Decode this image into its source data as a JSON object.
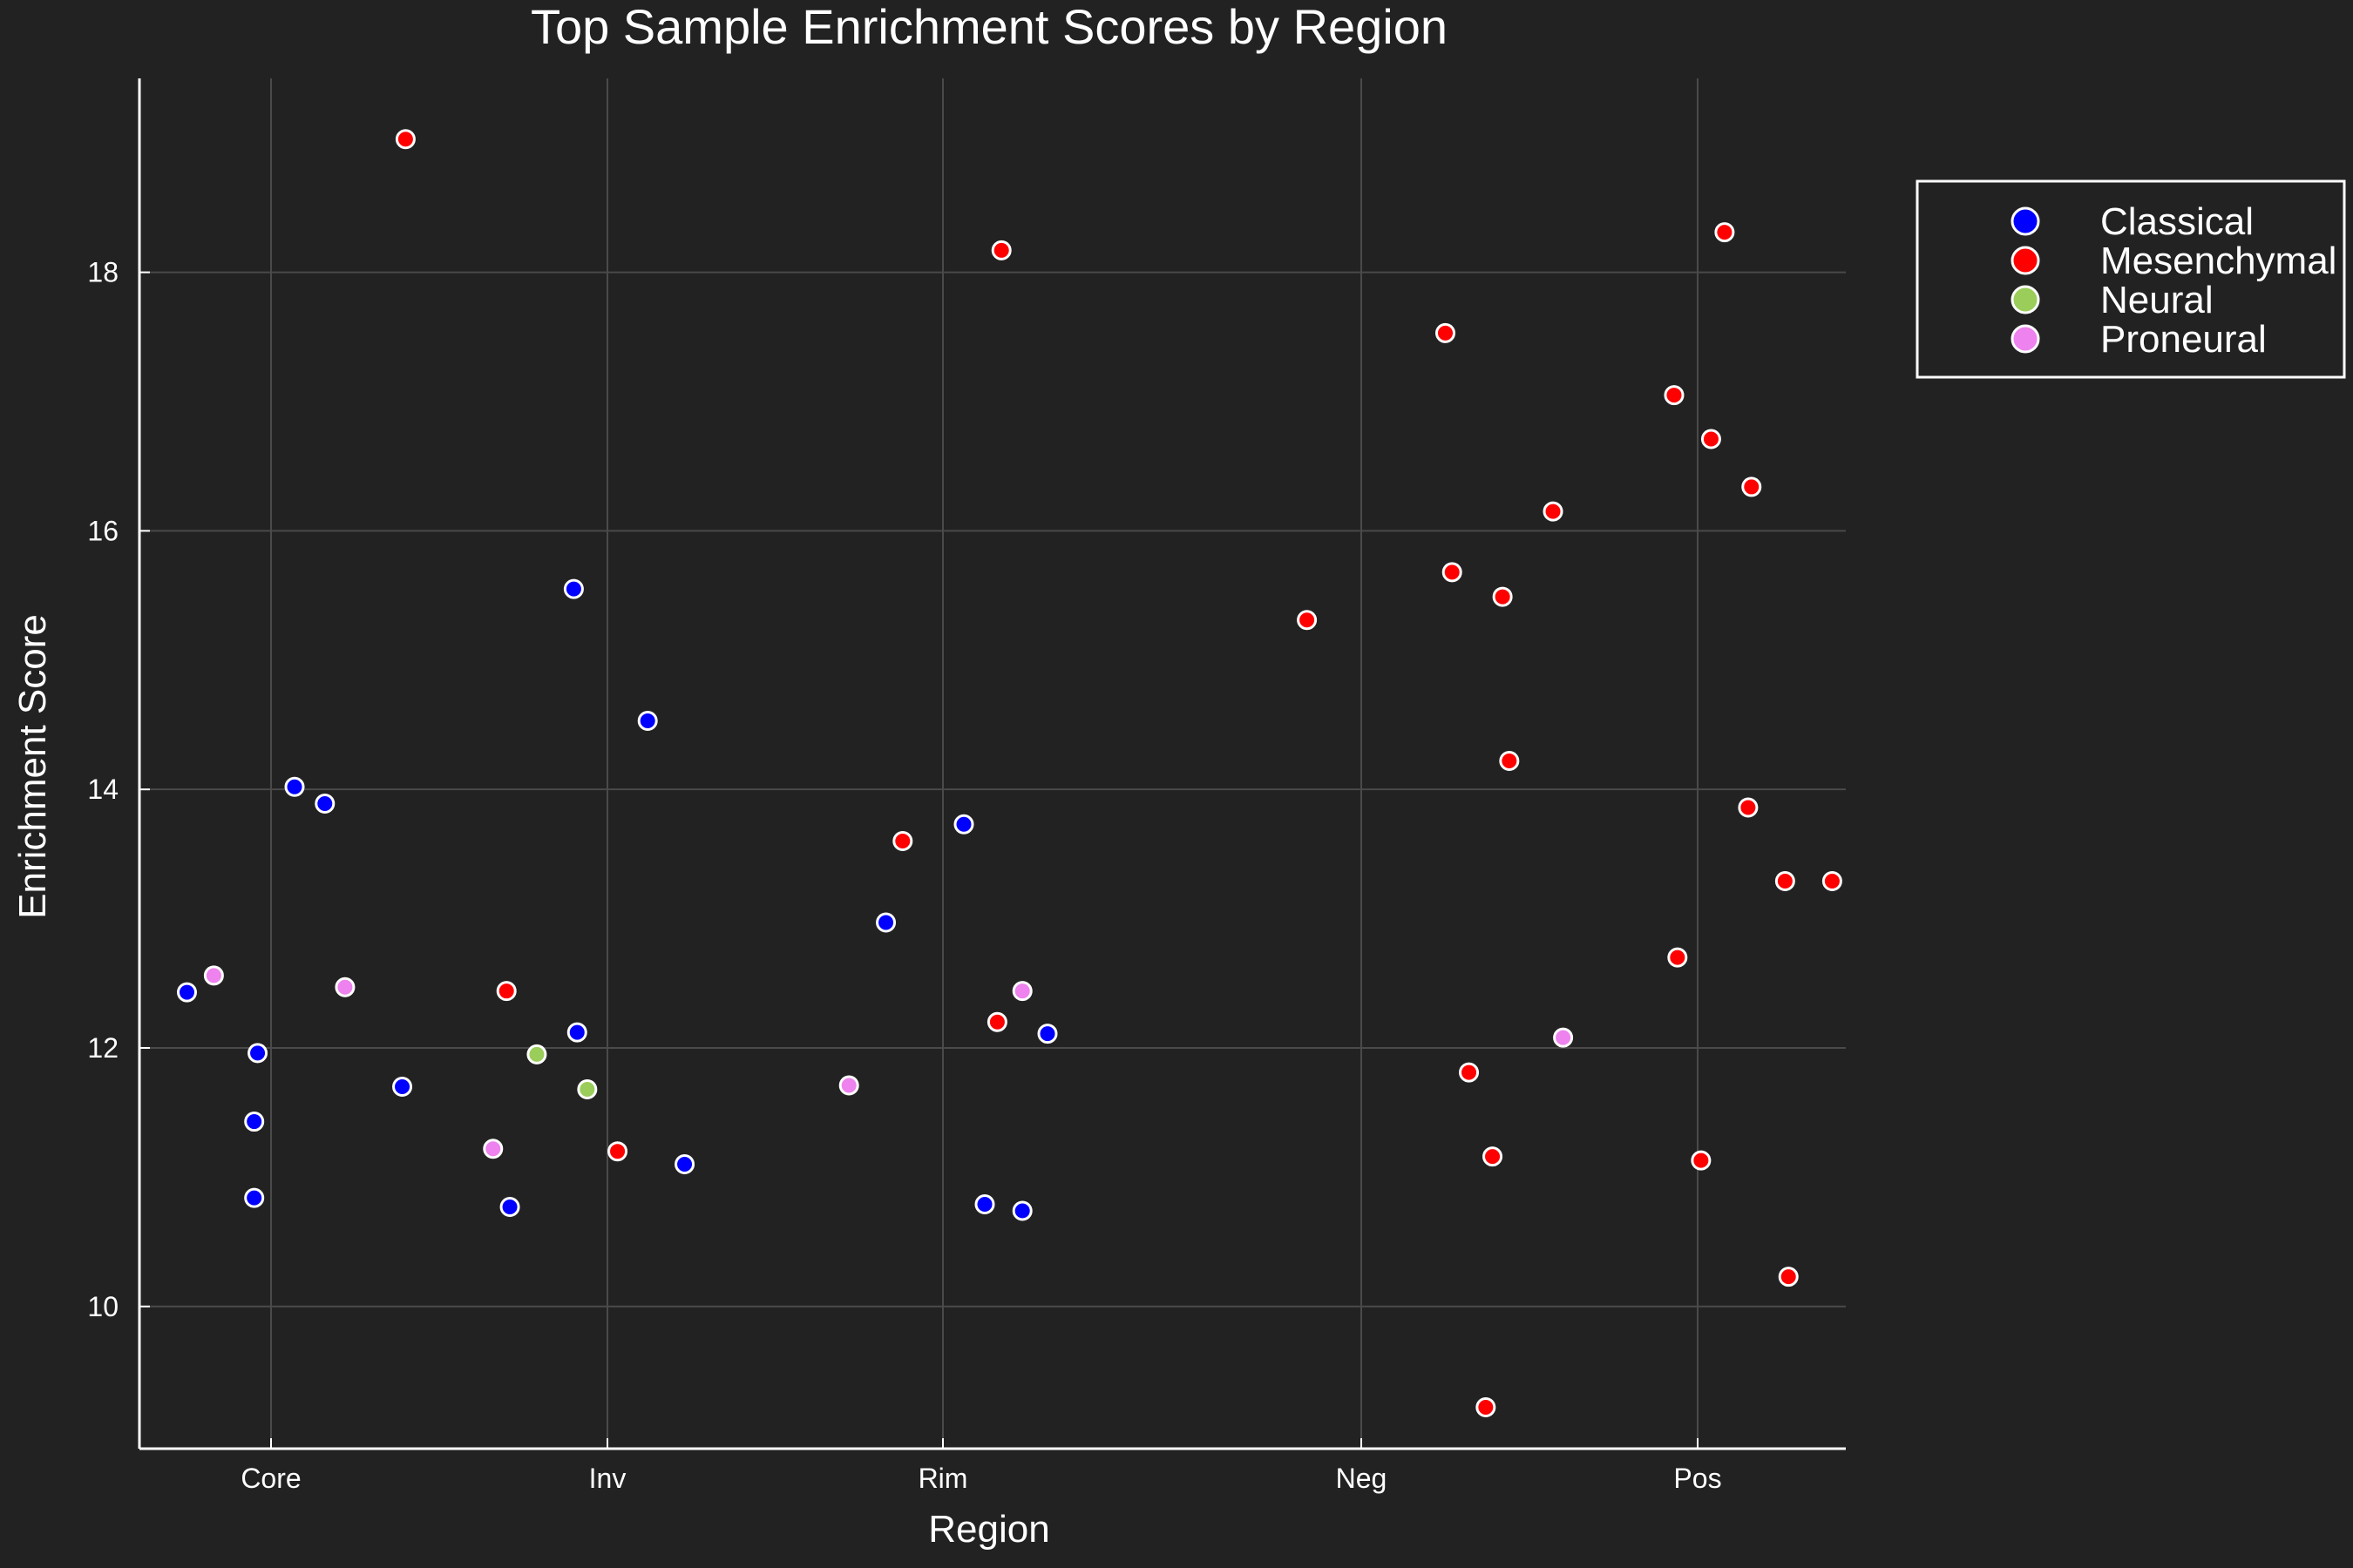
{
  "chart_data": {
    "type": "scatter",
    "title": "Top Sample Enrichment Scores by Region",
    "xlabel": "Region",
    "ylabel": "Enrichment Score",
    "categories": [
      "Core",
      "Inv",
      "Rim",
      "Neg",
      "Pos"
    ],
    "ylim": [
      8.9,
      19.5
    ],
    "yticks": [
      10,
      12,
      14,
      16,
      18
    ],
    "grid": true,
    "legend_position": "top-right",
    "series": [
      {
        "name": "Classical",
        "color": "#0000ff",
        "points": [
          {
            "x": -0.25,
            "y": 12.43
          },
          {
            "x": -0.04,
            "y": 11.96
          },
          {
            "x": -0.05,
            "y": 11.43
          },
          {
            "x": -0.05,
            "y": 10.84
          },
          {
            "x": 0.07,
            "y": 14.02
          },
          {
            "x": 0.16,
            "y": 13.89
          },
          {
            "x": 0.39,
            "y": 11.7
          },
          {
            "x": 0.71,
            "y": 10.77
          },
          {
            "x": 0.9,
            "y": 15.55
          },
          {
            "x": 0.91,
            "y": 12.12
          },
          {
            "x": 1.12,
            "y": 14.53
          },
          {
            "x": 1.23,
            "y": 11.1
          },
          {
            "x": 1.83,
            "y": 12.97
          },
          {
            "x": 2.05,
            "y": 13.73
          },
          {
            "x": 2.1,
            "y": 10.79
          },
          {
            "x": 2.19,
            "y": 10.74
          },
          {
            "x": 2.25,
            "y": 12.11
          }
        ]
      },
      {
        "name": "Mesenchymal",
        "color": "#ff0000",
        "points": [
          {
            "x": 0.4,
            "y": 19.03
          },
          {
            "x": 0.7,
            "y": 12.44
          },
          {
            "x": 1.03,
            "y": 11.2
          },
          {
            "x": 1.88,
            "y": 13.6
          },
          {
            "x": 2.14,
            "y": 18.17
          },
          {
            "x": 2.13,
            "y": 12.2
          },
          {
            "x": 2.87,
            "y": 15.31
          },
          {
            "x": 3.25,
            "y": 17.53
          },
          {
            "x": 3.27,
            "y": 15.68
          },
          {
            "x": 3.42,
            "y": 15.49
          },
          {
            "x": 3.44,
            "y": 14.22
          },
          {
            "x": 3.57,
            "y": 16.15
          },
          {
            "x": 3.32,
            "y": 11.81
          },
          {
            "x": 3.39,
            "y": 11.16
          },
          {
            "x": 3.37,
            "y": 9.22
          },
          {
            "x": 3.93,
            "y": 17.05
          },
          {
            "x": 4.08,
            "y": 18.31
          },
          {
            "x": 3.94,
            "y": 12.7
          },
          {
            "x": 4.04,
            "y": 16.71
          },
          {
            "x": 4.16,
            "y": 16.34
          },
          {
            "x": 4.15,
            "y": 13.86
          },
          {
            "x": 4.26,
            "y": 13.29
          },
          {
            "x": 4.4,
            "y": 13.29
          },
          {
            "x": 4.01,
            "y": 11.13
          },
          {
            "x": 4.27,
            "y": 10.23
          }
        ]
      },
      {
        "name": "Neural",
        "color": "#9acd5a",
        "points": [
          {
            "x": 0.79,
            "y": 11.95
          },
          {
            "x": 0.94,
            "y": 11.68
          }
        ]
      },
      {
        "name": "Proneural",
        "color": "#ee82ee",
        "points": [
          {
            "x": -0.17,
            "y": 12.56
          },
          {
            "x": 0.22,
            "y": 12.47
          },
          {
            "x": 0.66,
            "y": 11.22
          },
          {
            "x": 1.72,
            "y": 11.71
          },
          {
            "x": 2.19,
            "y": 12.44
          },
          {
            "x": 3.6,
            "y": 12.08
          }
        ]
      }
    ]
  }
}
